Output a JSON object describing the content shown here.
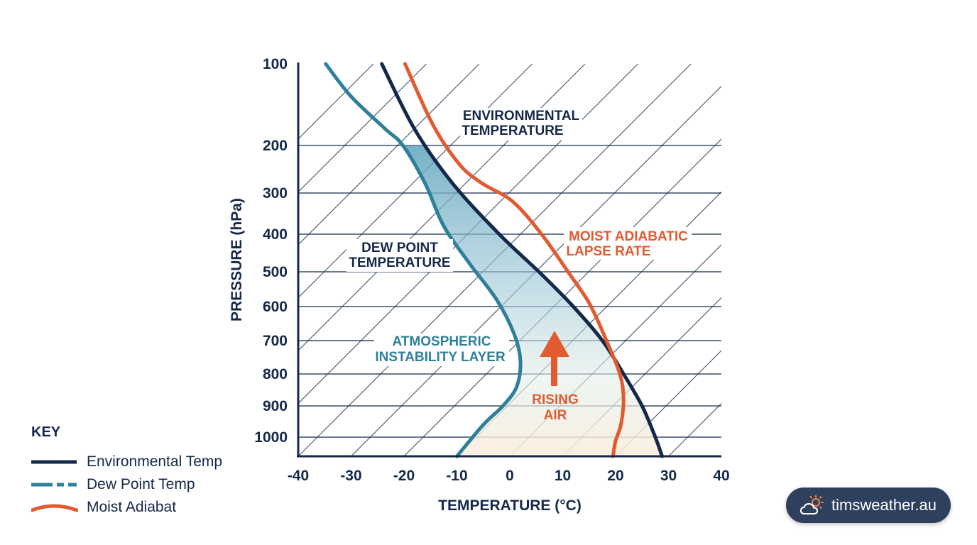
{
  "chart_data": {
    "type": "line",
    "title": "",
    "xlabel": "TEMPERATURE (°C)",
    "ylabel": "PRESSURE (hPa)",
    "xlim": [
      -40,
      40
    ],
    "x_ticks": [
      -40,
      -30,
      -20,
      -10,
      0,
      10,
      20,
      30,
      40
    ],
    "y_ticks": [
      100,
      200,
      300,
      400,
      500,
      600,
      700,
      800,
      900,
      1000
    ],
    "ylim": [
      100,
      1050
    ],
    "y_inverted": true,
    "grid": true,
    "skewed_isotherms": true,
    "series": [
      {
        "name": "Environmental Temp",
        "color": "#14294a",
        "points": [
          [
            -24.2,
            100
          ],
          [
            -18,
            180
          ],
          [
            -10.8,
            280
          ],
          [
            -2,
            400
          ],
          [
            5.5,
            500
          ],
          [
            12,
            600
          ],
          [
            17.5,
            700
          ],
          [
            21.5,
            800
          ],
          [
            25,
            900
          ],
          [
            27.5,
            1000
          ],
          [
            28.8,
            1050
          ]
        ]
      },
      {
        "name": "Dew Point Temp",
        "color": "#2e7f9b",
        "points": [
          [
            -34.8,
            100
          ],
          [
            -30,
            140
          ],
          [
            -23.5,
            180
          ],
          [
            -20.2,
            200
          ],
          [
            -16,
            280
          ],
          [
            -12.5,
            380
          ],
          [
            -7.5,
            480
          ],
          [
            -2.5,
            580
          ],
          [
            0.8,
            680
          ],
          [
            2,
            760
          ],
          [
            1.3,
            840
          ],
          [
            -1.3,
            900
          ],
          [
            -5,
            960
          ],
          [
            -10,
            1050
          ]
        ]
      },
      {
        "name": "Moist Adiabat",
        "color": "#e25a30",
        "points": [
          [
            -19.8,
            100
          ],
          [
            -14.5,
            175
          ],
          [
            -9.5,
            240
          ],
          [
            -5.2,
            280
          ],
          [
            0.5,
            320
          ],
          [
            6,
            400
          ],
          [
            11,
            500
          ],
          [
            15,
            590
          ],
          [
            18,
            690
          ],
          [
            20.8,
            800
          ],
          [
            21.5,
            880
          ],
          [
            21,
            960
          ],
          [
            20,
            1010
          ],
          [
            19.5,
            1050
          ]
        ]
      }
    ],
    "annotations": {
      "environmental": [
        "ENVIRONMENTAL",
        "TEMPERATURE"
      ],
      "dew_point": [
        "DEW POINT",
        "TEMPERATURE"
      ],
      "moist": [
        "MOIST ADIABATIC",
        "LAPSE RATE"
      ],
      "instability": [
        "ATMOSPHERIC",
        "INSTABILITY LAYER"
      ],
      "rising": [
        "RISING",
        "AIR"
      ]
    },
    "legend_position": "bottom-left"
  },
  "key": {
    "title": "KEY",
    "items": [
      {
        "label": "Environmental Temp",
        "color": "#14294a",
        "style": "solid"
      },
      {
        "label": "Dew Point Temp",
        "color": "#2e7f9b",
        "style": "dashed"
      },
      {
        "label": "Moist Adiabat",
        "color": "#e25a30",
        "style": "curved"
      }
    ]
  },
  "badge": {
    "text": "timsweather.au",
    "icon": "cloud-sun-icon"
  }
}
